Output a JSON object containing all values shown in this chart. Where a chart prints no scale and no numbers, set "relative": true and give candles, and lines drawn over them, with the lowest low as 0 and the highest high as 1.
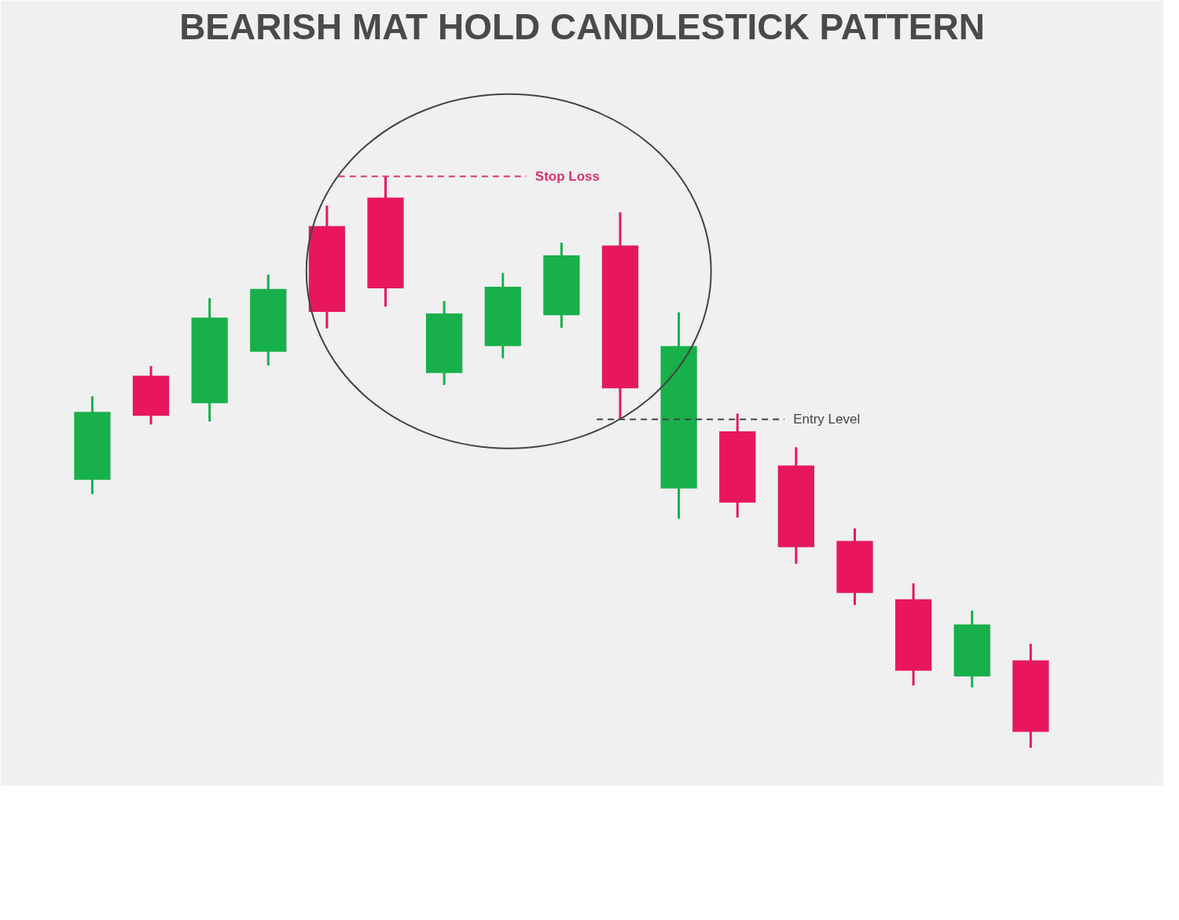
{
  "chart_data": {
    "type": "candlestick",
    "title": "BEARISH MAT HOLD CANDLESTICK PATTERN",
    "relative": true,
    "categories": [
      null,
      null,
      null,
      null,
      null,
      null,
      null,
      null,
      null,
      null,
      null,
      null,
      null,
      null,
      null,
      null,
      null
    ],
    "ohlc": [
      [
        0.469,
        0.615,
        0.444,
        0.588
      ],
      [
        0.651,
        0.668,
        0.566,
        0.581
      ],
      [
        0.603,
        0.787,
        0.571,
        0.753
      ],
      [
        0.693,
        0.828,
        0.669,
        0.803
      ],
      [
        0.913,
        0.949,
        0.734,
        0.763
      ],
      [
        0.963,
        1.0,
        0.772,
        0.804
      ],
      [
        0.656,
        0.782,
        0.635,
        0.76
      ],
      [
        0.703,
        0.831,
        0.682,
        0.807
      ],
      [
        0.757,
        0.884,
        0.735,
        0.862
      ],
      [
        0.879,
        0.937,
        0.575,
        0.629
      ],
      [
        0.454,
        0.762,
        0.401,
        0.703
      ],
      [
        0.554,
        0.585,
        0.403,
        0.429
      ],
      [
        0.494,
        0.526,
        0.322,
        0.351
      ],
      [
        0.362,
        0.384,
        0.25,
        0.271
      ],
      [
        0.26,
        0.288,
        0.109,
        0.135
      ],
      [
        0.125,
        0.24,
        0.106,
        0.216
      ],
      [
        0.153,
        0.182,
        0.0,
        0.028
      ]
    ],
    "colors": [
      "#18b04a",
      "#e8175d",
      "#18b04a",
      "#18b04a",
      "#e8175d",
      "#e8175d",
      "#18b04a",
      "#18b04a",
      "#18b04a",
      "#e8175d",
      "#18b04a",
      "#e8175d",
      "#e8175d",
      "#e8175d",
      "#e8175d",
      "#18b04a",
      "#e8175d"
    ],
    "ref_lines": [
      {
        "axis": "y",
        "value": 1.0,
        "label": "Stop Loss",
        "color": "#d6336c",
        "line_style": "dashed"
      },
      {
        "axis": "y",
        "value": 0.575,
        "label": "Entry Level",
        "color": "#444444",
        "line_style": "dashed"
      }
    ],
    "grid": false,
    "tick_labels": false
  }
}
